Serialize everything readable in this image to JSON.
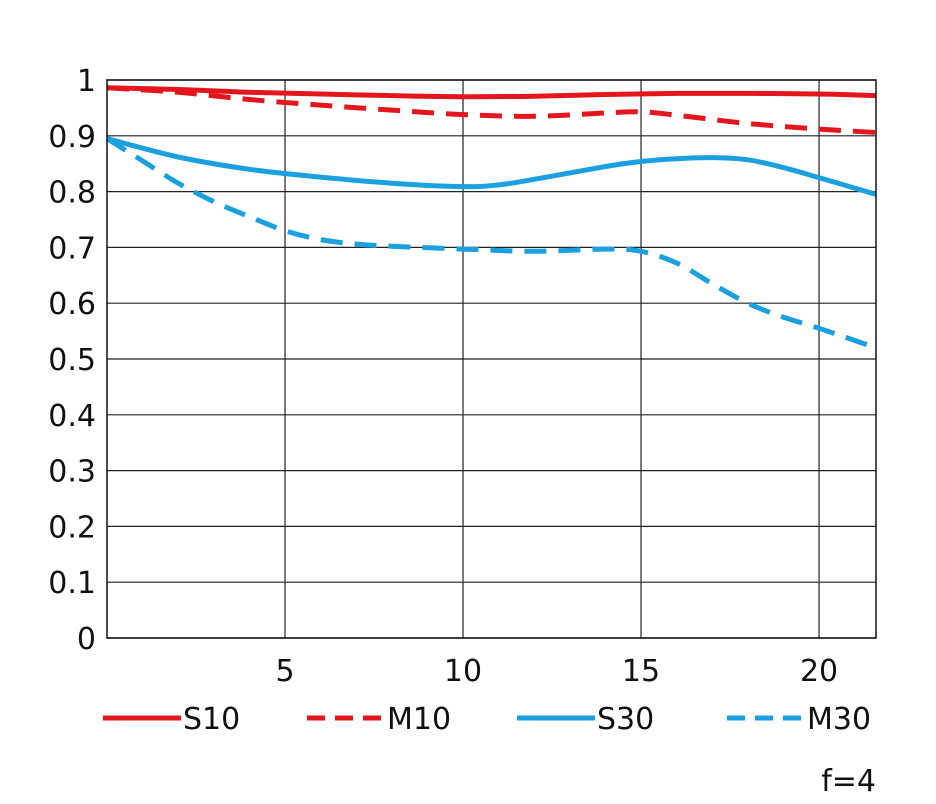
{
  "chart_data": {
    "type": "line",
    "title": "",
    "xlabel": "",
    "ylabel": "",
    "xlim": [
      0,
      21.6
    ],
    "ylim": [
      0,
      1
    ],
    "x_ticks": [
      5,
      10,
      15,
      20
    ],
    "x_tick_labels": [
      "5",
      "10",
      "15",
      "20"
    ],
    "y_ticks": [
      0,
      0.1,
      0.2,
      0.3,
      0.4,
      0.5,
      0.6,
      0.7,
      0.8,
      0.9,
      1
    ],
    "y_tick_labels": [
      "0",
      "0.1",
      "0.2",
      "0.3",
      "0.4",
      "0.5",
      "0.6",
      "0.7",
      "0.8",
      "0.9",
      "1"
    ],
    "grid": true,
    "legend_position": "bottom",
    "note": "f=4",
    "series": [
      {
        "name": "S10",
        "color": "#e3161e",
        "dash": "solid",
        "x": [
          0,
          2,
          4,
          6,
          8,
          10,
          12,
          14,
          16,
          18,
          20,
          21.6
        ],
        "y": [
          0.986,
          0.983,
          0.978,
          0.975,
          0.972,
          0.97,
          0.971,
          0.974,
          0.976,
          0.976,
          0.975,
          0.972
        ]
      },
      {
        "name": "M10",
        "color": "#e3161e",
        "dash": "dashed",
        "x": [
          0,
          2,
          4,
          6,
          8,
          10,
          12,
          14,
          15,
          16,
          18,
          20,
          21.6
        ],
        "y": [
          0.986,
          0.978,
          0.965,
          0.955,
          0.946,
          0.938,
          0.935,
          0.941,
          0.943,
          0.937,
          0.922,
          0.912,
          0.906
        ]
      },
      {
        "name": "S30",
        "color": "#1ba0df",
        "dash": "solid",
        "x": [
          0,
          2,
          4,
          6,
          8,
          10,
          11,
          12,
          14,
          15,
          16,
          17,
          18,
          19,
          20,
          21.6
        ],
        "y": [
          0.895,
          0.862,
          0.84,
          0.826,
          0.815,
          0.809,
          0.812,
          0.822,
          0.845,
          0.854,
          0.859,
          0.861,
          0.857,
          0.843,
          0.825,
          0.795
        ]
      },
      {
        "name": "M30",
        "color": "#1ba0df",
        "dash": "dashed",
        "x": [
          0,
          1,
          2,
          3,
          4,
          5,
          6,
          7,
          8,
          10,
          12,
          14,
          15,
          16,
          17,
          18,
          19,
          20,
          21.6
        ],
        "y": [
          0.895,
          0.855,
          0.815,
          0.782,
          0.755,
          0.73,
          0.714,
          0.706,
          0.702,
          0.697,
          0.693,
          0.697,
          0.693,
          0.672,
          0.635,
          0.6,
          0.575,
          0.555,
          0.52
        ]
      }
    ]
  }
}
